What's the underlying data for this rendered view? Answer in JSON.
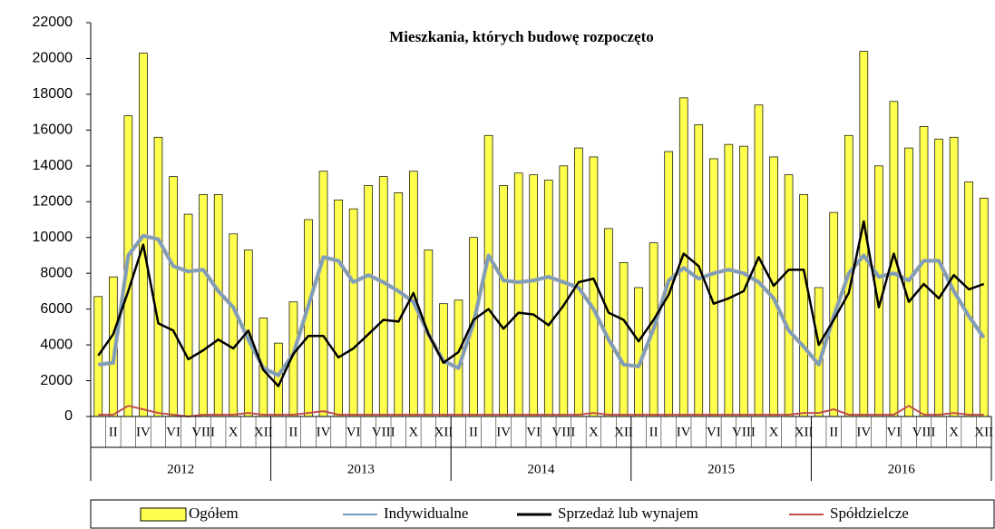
{
  "chart_data": {
    "type": "bar",
    "title": "Mieszkania, których budowę rozpoczęto",
    "categories": [
      null,
      "II",
      null,
      "IV",
      null,
      "VI",
      null,
      "VIII",
      null,
      "X",
      null,
      "XII",
      null,
      "II",
      null,
      "IV",
      null,
      "VI",
      null,
      "VIII",
      null,
      "X",
      null,
      "XII",
      null,
      "II",
      null,
      "IV",
      null,
      "VI",
      null,
      "VIII",
      null,
      "X",
      null,
      "XII",
      null,
      "II",
      null,
      "IV",
      null,
      "VI",
      null,
      "VIII",
      null,
      "X",
      null,
      "XII",
      null,
      "II",
      null,
      "IV",
      null,
      "VI",
      null,
      "VIII",
      null,
      "X",
      null,
      "XII"
    ],
    "years": [
      "2012",
      "2013",
      "2014",
      "2015",
      "2016"
    ],
    "ylim": [
      0,
      22000
    ],
    "yticks": [
      0,
      2000,
      4000,
      6000,
      8000,
      10000,
      12000,
      14000,
      16000,
      18000,
      20000,
      22000
    ],
    "grid": false,
    "legend": "bottom",
    "series": [
      {
        "name": "Ogółem",
        "type": "bar",
        "color": "#ffff4d",
        "values": [
          6700,
          7800,
          16800,
          20300,
          15600,
          13400,
          11300,
          12400,
          12400,
          10200,
          9300,
          5500,
          4100,
          6400,
          11000,
          13700,
          12100,
          11600,
          12900,
          13400,
          12500,
          13700,
          9300,
          6300,
          6500,
          10000,
          15700,
          12900,
          13600,
          13500,
          13200,
          14000,
          15000,
          14500,
          10500,
          8600,
          7200,
          9700,
          14800,
          17800,
          16300,
          14400,
          15200,
          15100,
          17400,
          14500,
          13500,
          12400,
          7200,
          11400,
          15700,
          20400,
          14000,
          17600,
          15000,
          16200,
          15500,
          15600,
          13100,
          12200
        ]
      },
      {
        "name": "Indywidualne",
        "type": "line",
        "color": "#6f9cc0",
        "values": [
          2900,
          3000,
          9000,
          10100,
          9900,
          8400,
          8100,
          8200,
          7000,
          6100,
          4300,
          2700,
          2300,
          3500,
          6200,
          8900,
          8700,
          7500,
          7900,
          7500,
          7000,
          6400,
          4600,
          3100,
          2700,
          5200,
          9000,
          7600,
          7500,
          7600,
          7800,
          7500,
          7200,
          6000,
          4300,
          2900,
          2800,
          4900,
          7600,
          8300,
          7700,
          8000,
          8200,
          8000,
          7500,
          6600,
          4800,
          3900,
          2900,
          5600,
          8000,
          9000,
          7800,
          8000,
          7600,
          8700,
          8700,
          7000,
          5600,
          4400
        ]
      },
      {
        "name": "Sprzedaż lub wynajem",
        "type": "line",
        "color": "#000000",
        "values": [
          3400,
          4600,
          7000,
          9600,
          5200,
          4800,
          3200,
          3700,
          4300,
          3800,
          4800,
          2600,
          1700,
          3500,
          4500,
          4500,
          3300,
          3800,
          4600,
          5400,
          5300,
          6900,
          4600,
          3000,
          3600,
          5400,
          6000,
          4900,
          5800,
          5700,
          5100,
          6200,
          7500,
          7700,
          5800,
          5400,
          4200,
          5400,
          6800,
          9100,
          8400,
          6300,
          6600,
          7000,
          8900,
          7300,
          8200,
          8200,
          4000,
          5400,
          6900,
          10900,
          6100,
          9100,
          6400,
          7400,
          6600,
          7900,
          7100,
          7400
        ]
      },
      {
        "name": "Spółdzielcze",
        "type": "line",
        "color": "#c0504d",
        "values": [
          100,
          100,
          600,
          400,
          200,
          100,
          0,
          100,
          100,
          100,
          200,
          100,
          100,
          100,
          200,
          300,
          100,
          100,
          100,
          100,
          100,
          100,
          100,
          100,
          100,
          100,
          100,
          100,
          100,
          100,
          100,
          100,
          100,
          200,
          100,
          100,
          100,
          100,
          100,
          100,
          100,
          100,
          100,
          100,
          100,
          100,
          100,
          200,
          200,
          400,
          100,
          100,
          100,
          100,
          600,
          100,
          100,
          200,
          100,
          100
        ]
      }
    ]
  }
}
